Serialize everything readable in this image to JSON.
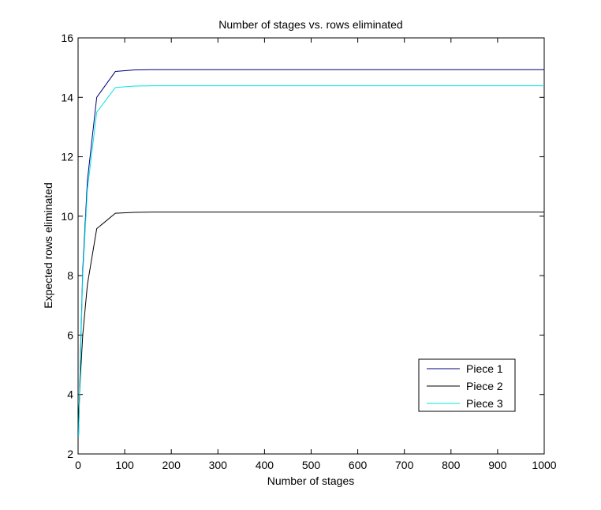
{
  "chart_data": {
    "type": "line",
    "title": "Number of stages vs. rows eliminated",
    "xlabel": "Number of stages",
    "ylabel": "Expected rows eliminated",
    "xlim": [
      0,
      1000
    ],
    "ylim": [
      2,
      16
    ],
    "xticks": [
      0,
      100,
      200,
      300,
      400,
      500,
      600,
      700,
      800,
      900,
      1000
    ],
    "yticks": [
      2,
      4,
      6,
      8,
      10,
      12,
      14,
      16
    ],
    "grid": false,
    "legend_position": "lower-right",
    "x": [
      1,
      5,
      10,
      20,
      40,
      80,
      120,
      160,
      200,
      300,
      400,
      500,
      600,
      700,
      800,
      900,
      1000
    ],
    "series": [
      {
        "name": "Piece 1",
        "color": "#000080",
        "values": [
          2.6,
          5.3,
          8.2,
          11.2,
          14.0,
          14.87,
          14.92,
          14.93,
          14.93,
          14.93,
          14.93,
          14.93,
          14.93,
          14.93,
          14.93,
          14.93,
          14.93
        ]
      },
      {
        "name": "Piece 2",
        "color": "#000000",
        "values": [
          3.2,
          4.6,
          6.0,
          7.7,
          9.58,
          10.1,
          10.13,
          10.14,
          10.14,
          10.14,
          10.14,
          10.14,
          10.14,
          10.14,
          10.14,
          10.14,
          10.14
        ]
      },
      {
        "name": "Piece 3",
        "color": "#00e5e5",
        "values": [
          2.6,
          5.1,
          8.0,
          10.9,
          13.5,
          14.33,
          14.38,
          14.39,
          14.39,
          14.39,
          14.39,
          14.39,
          14.39,
          14.39,
          14.39,
          14.39,
          14.39
        ]
      }
    ]
  }
}
